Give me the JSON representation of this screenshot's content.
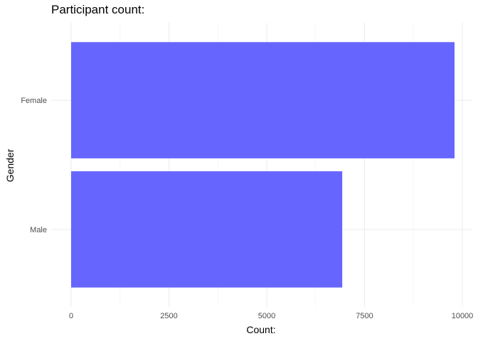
{
  "chart_data": {
    "type": "bar",
    "orientation": "horizontal",
    "title": "Participant count:",
    "xlabel": "Count:",
    "ylabel": "Gender",
    "categories": [
      "Female",
      "Male"
    ],
    "values": [
      9800,
      6930
    ],
    "xlim": [
      0,
      10000
    ],
    "x_ticks": [
      "0",
      "2500",
      "5000",
      "7500",
      "10000"
    ],
    "x_tick_values": [
      0,
      2500,
      5000,
      7500,
      10000
    ],
    "grid": true,
    "bar_color": "#6666ff",
    "legend": "none"
  }
}
